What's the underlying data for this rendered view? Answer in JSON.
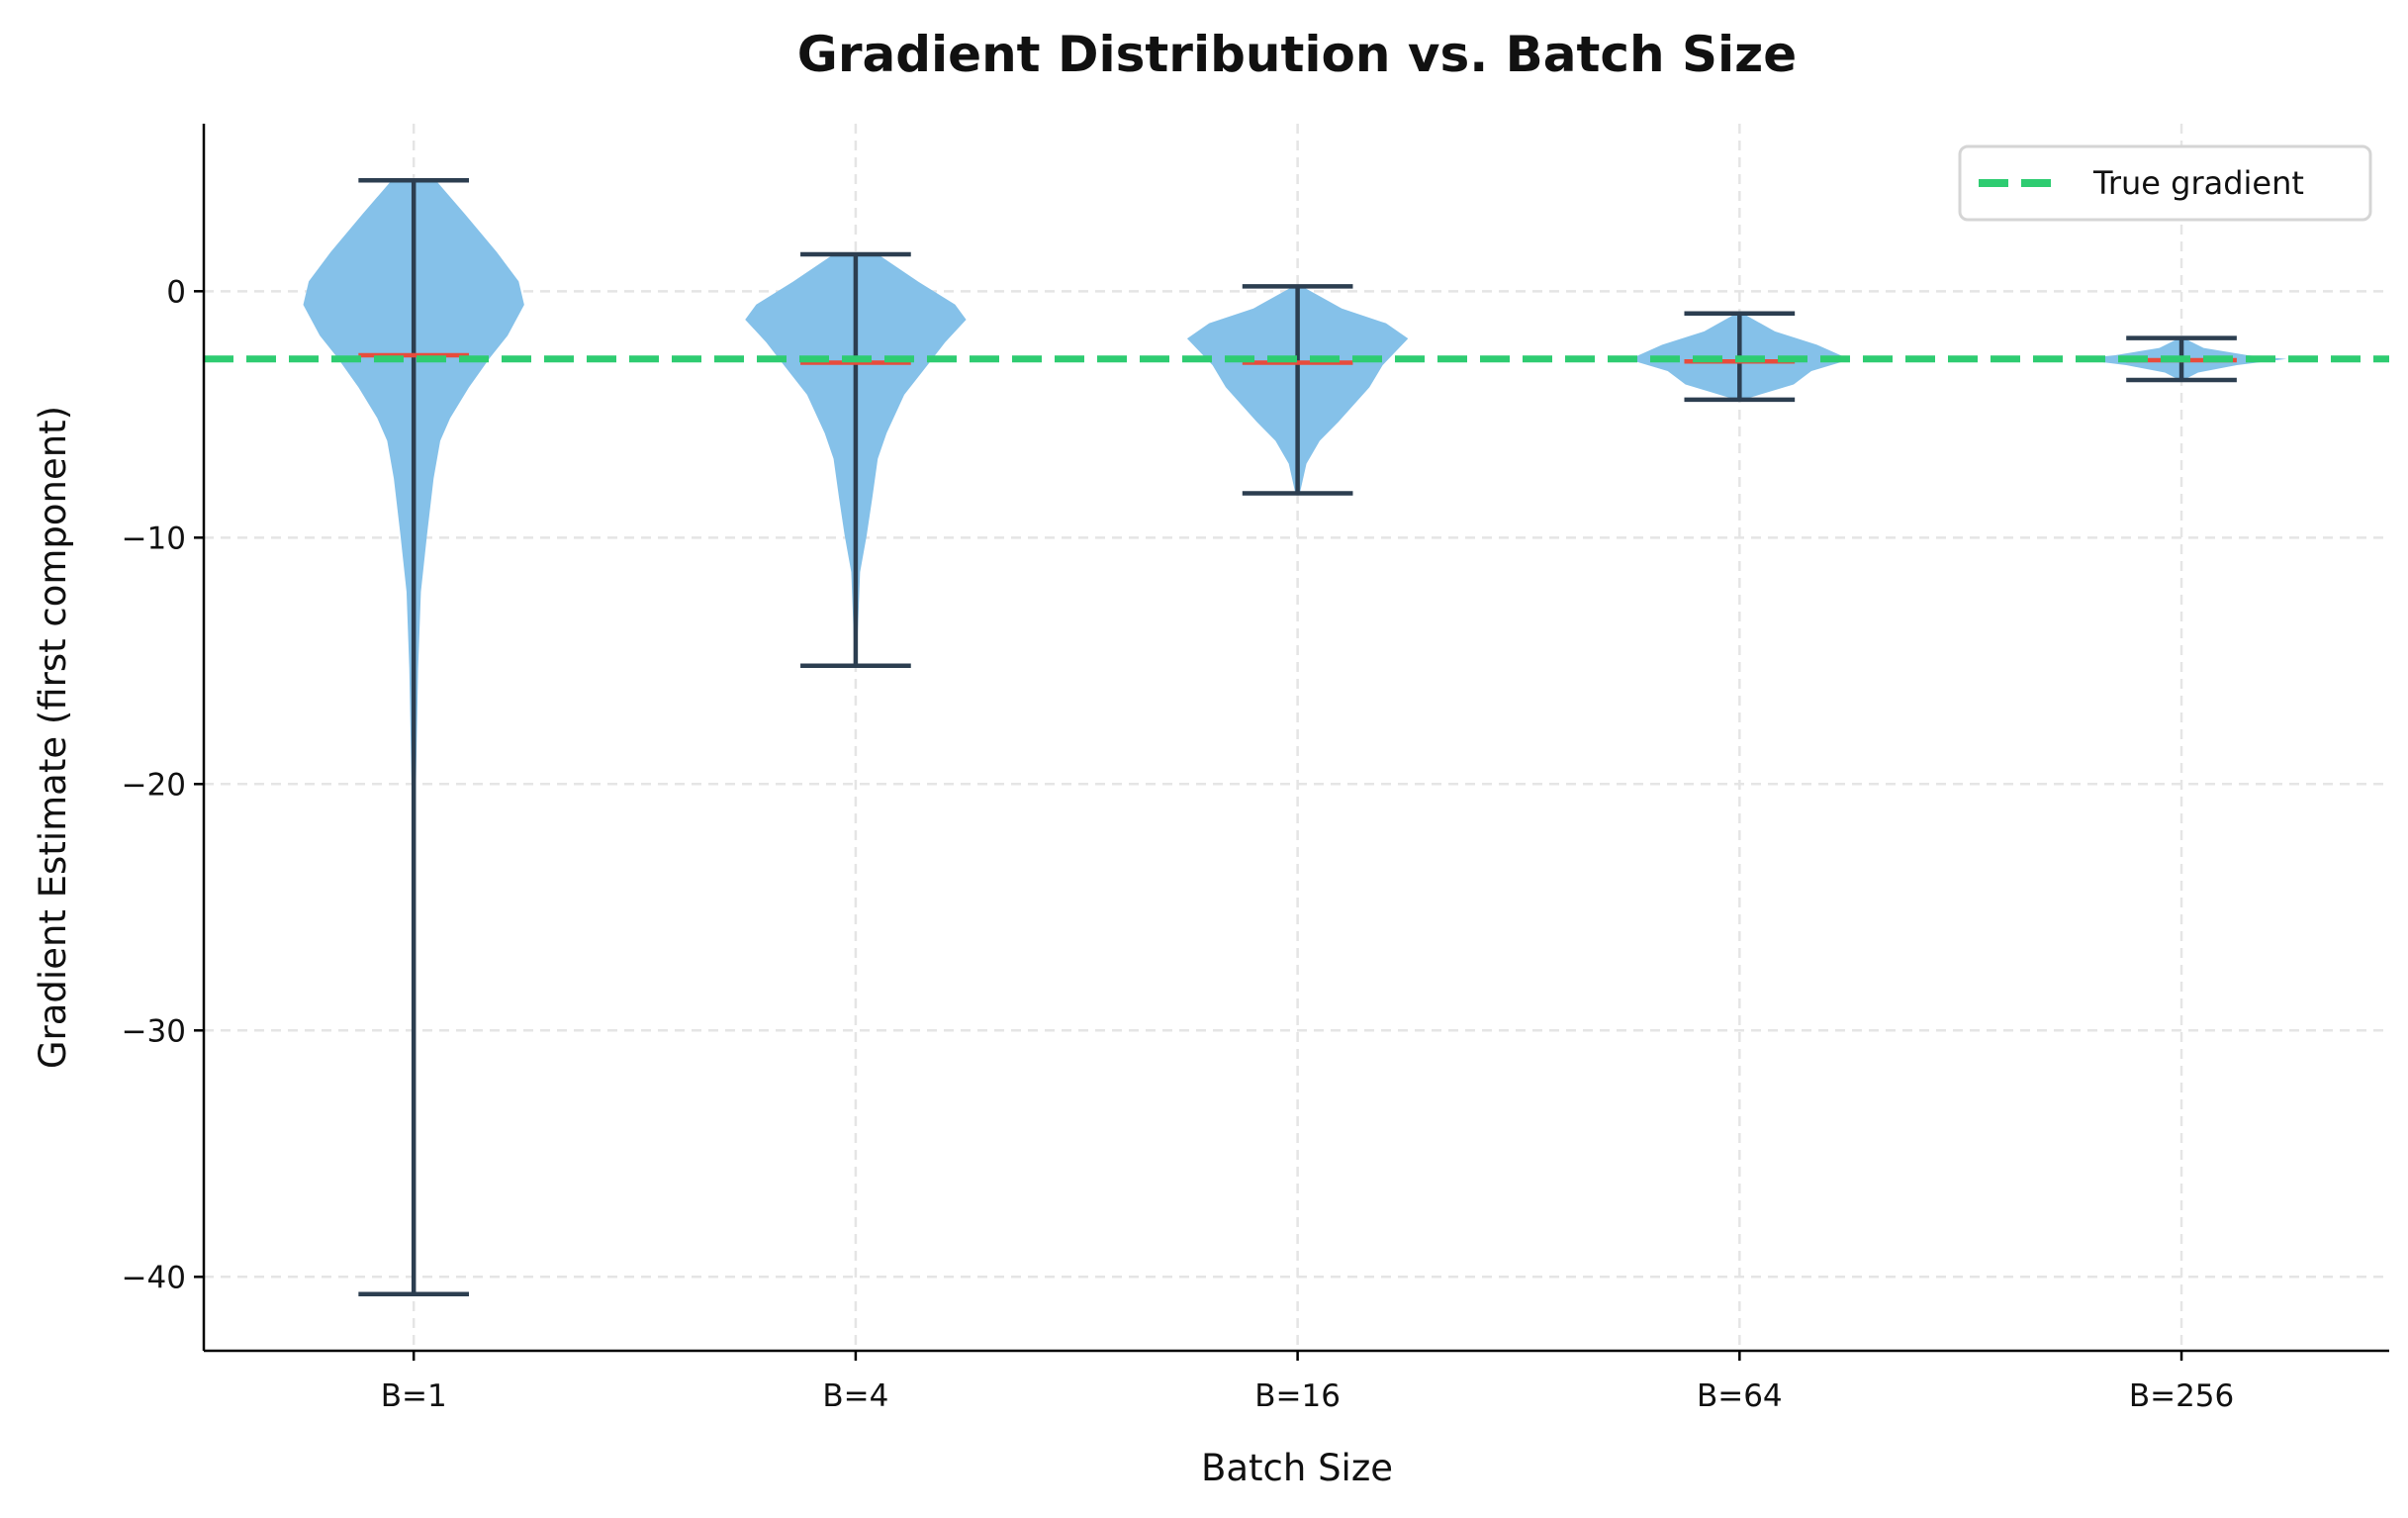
{
  "chart_data": {
    "type": "violin",
    "title": "Gradient Distribution vs. Batch Size",
    "xlabel": "Batch Size",
    "ylabel": "Gradient Estimate (first component)",
    "categories": [
      "B=1",
      "B=4",
      "B=16",
      "B=64",
      "B=256"
    ],
    "ylim": [
      -43,
      6.8
    ],
    "yticks": [
      0,
      -10,
      -20,
      -30,
      -40
    ],
    "ytick_labels": [
      "0",
      "−10",
      "−20",
      "−30",
      "−40"
    ],
    "grid": true,
    "legend": {
      "placement": "top-right",
      "entries": [
        "True gradient"
      ]
    },
    "reference_line": {
      "name": "True gradient",
      "value": -2.75,
      "style": "dashed"
    },
    "violins": [
      {
        "category": "B=1",
        "max": 4.5,
        "min": -40.7,
        "median": -2.6,
        "density": [
          [
            4.5,
            0.2
          ],
          [
            3.15,
            0.46
          ],
          [
            1.6,
            0.75
          ],
          [
            0.4,
            0.95
          ],
          [
            -0.55,
            1.0
          ],
          [
            -1.8,
            0.85
          ],
          [
            -2.7,
            0.69
          ],
          [
            -3.9,
            0.5
          ],
          [
            -5.15,
            0.33
          ],
          [
            -6.07,
            0.24
          ],
          [
            -7.6,
            0.18
          ],
          [
            -9.9,
            0.12
          ],
          [
            -12.2,
            0.065
          ],
          [
            -15.3,
            0.04
          ],
          [
            -20,
            0.02
          ],
          [
            -30,
            0.01
          ],
          [
            -40.7,
            0.008
          ]
        ]
      },
      {
        "category": "B=4",
        "max": 1.5,
        "min": -15.2,
        "median": -2.9,
        "density": [
          [
            1.5,
            0.2
          ],
          [
            0.38,
            0.57
          ],
          [
            -0.54,
            0.9
          ],
          [
            -1.15,
            1.0
          ],
          [
            -2.07,
            0.81
          ],
          [
            -3.0,
            0.65
          ],
          [
            -4.2,
            0.44
          ],
          [
            -5.76,
            0.28
          ],
          [
            -6.8,
            0.2
          ],
          [
            -8.4,
            0.15
          ],
          [
            -9.9,
            0.1
          ],
          [
            -11.4,
            0.04
          ],
          [
            -13.7,
            0.02
          ],
          [
            -15.2,
            0.01
          ]
        ]
      },
      {
        "category": "B=16",
        "max": 0.2,
        "min": -8.2,
        "median": -2.9,
        "density": [
          [
            0.2,
            0.04
          ],
          [
            -0.7,
            0.4
          ],
          [
            -1.3,
            0.8
          ],
          [
            -1.92,
            1.0
          ],
          [
            -3.0,
            0.77
          ],
          [
            -3.9,
            0.65
          ],
          [
            -5.3,
            0.37
          ],
          [
            -6.07,
            0.2
          ],
          [
            -7.0,
            0.08
          ],
          [
            -8.2,
            0.02
          ]
        ]
      },
      {
        "category": "B=64",
        "max": -0.9,
        "min": -4.4,
        "median": -2.85,
        "density": [
          [
            -0.9,
            0.03
          ],
          [
            -1.63,
            0.32
          ],
          [
            -2.17,
            0.7
          ],
          [
            -2.77,
            1.0
          ],
          [
            -3.24,
            0.65
          ],
          [
            -3.78,
            0.49
          ],
          [
            -4.31,
            0.1
          ],
          [
            -4.4,
            0.03
          ]
        ]
      },
      {
        "category": "B=256",
        "max": -1.9,
        "min": -3.6,
        "median": -2.8,
        "density": [
          [
            -1.9,
            0.02
          ],
          [
            -2.3,
            0.2
          ],
          [
            -2.6,
            0.6
          ],
          [
            -2.75,
            0.95
          ],
          [
            -3.0,
            0.5
          ],
          [
            -3.3,
            0.15
          ],
          [
            -3.6,
            0.02
          ]
        ]
      }
    ],
    "colors": {
      "violin": "#85C1E9",
      "lines": "#2C3E50",
      "median": "#E74C3C",
      "reference": "#2ECC71",
      "grid": "#E5E5E5"
    }
  }
}
